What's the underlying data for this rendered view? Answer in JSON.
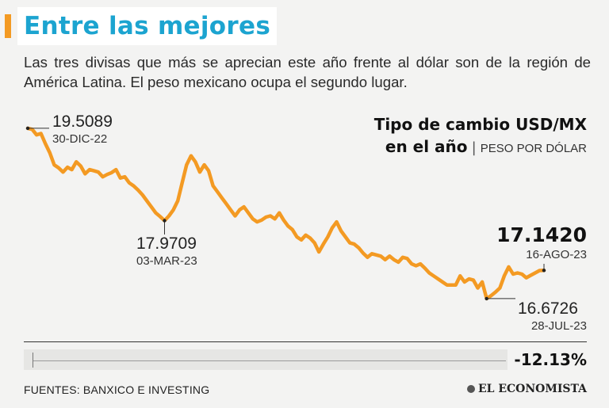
{
  "header": {
    "title": "Entre las mejores",
    "subtitle": "Las tres divisas que más se aprecian este año frente al dólar son de la región de América Latina. El peso mexicano ocupa el segundo lugar."
  },
  "chart_title": {
    "line1": "Tipo de cambio USD/MX",
    "line2": "en el año",
    "separator": "|",
    "unit": "PESO POR DÓLAR"
  },
  "annotations": {
    "start": {
      "value": "19.5089",
      "date": "30-DIC-22"
    },
    "low1": {
      "value": "17.9709",
      "date": "03-MAR-23"
    },
    "latest": {
      "value": "17.1420",
      "date": "16-AGO-23"
    },
    "low2": {
      "value": "16.6726",
      "date": "28-JUL-23"
    }
  },
  "change": {
    "label": "-12.13%",
    "value_pct": -12.13
  },
  "footer": {
    "sources": "FUENTES: BANXICO E INVESTING",
    "brand": "EL ECONOMISTA"
  },
  "colors": {
    "line": "#f39a23",
    "title": "#1ca4d0",
    "accent": "#f39a23",
    "background": "#f3f3f2"
  },
  "chart_data": {
    "type": "line",
    "title": "Tipo de cambio USD/MX en el año",
    "ylabel": "PESO POR DÓLAR",
    "xlabel": "",
    "ylim": [
      16.5,
      19.6
    ],
    "x_start": "2022-12-30",
    "x_end": "2023-08-16",
    "series": [
      {
        "name": "USD/MXN",
        "values": [
          19.5089,
          19.49,
          19.4,
          19.42,
          19.25,
          19.1,
          18.9,
          18.85,
          18.78,
          18.86,
          18.82,
          18.95,
          18.88,
          18.75,
          18.82,
          18.8,
          18.78,
          18.7,
          18.74,
          18.77,
          18.82,
          18.68,
          18.7,
          18.6,
          18.55,
          18.48,
          18.4,
          18.3,
          18.2,
          18.1,
          18.04,
          17.9709,
          18.05,
          18.15,
          18.3,
          18.6,
          18.9,
          19.05,
          18.95,
          18.78,
          18.9,
          18.8,
          18.55,
          18.45,
          18.35,
          18.25,
          18.15,
          18.05,
          18.15,
          18.2,
          18.1,
          18.0,
          17.95,
          17.98,
          18.03,
          18.05,
          18.0,
          18.1,
          17.98,
          17.88,
          17.82,
          17.7,
          17.65,
          17.73,
          17.68,
          17.6,
          17.45,
          17.58,
          17.7,
          17.85,
          17.95,
          17.8,
          17.7,
          17.6,
          17.58,
          17.52,
          17.43,
          17.36,
          17.42,
          17.4,
          17.38,
          17.32,
          17.38,
          17.32,
          17.28,
          17.36,
          17.34,
          17.25,
          17.22,
          17.25,
          17.18,
          17.1,
          17.05,
          17.0,
          16.95,
          16.9,
          16.9,
          16.9,
          17.05,
          16.95,
          17.0,
          16.98,
          16.85,
          16.95,
          16.6726,
          16.72,
          16.78,
          16.85,
          17.05,
          17.2,
          17.08,
          17.1,
          17.08,
          17.02,
          17.06,
          17.1,
          17.14,
          17.142
        ]
      }
    ]
  }
}
